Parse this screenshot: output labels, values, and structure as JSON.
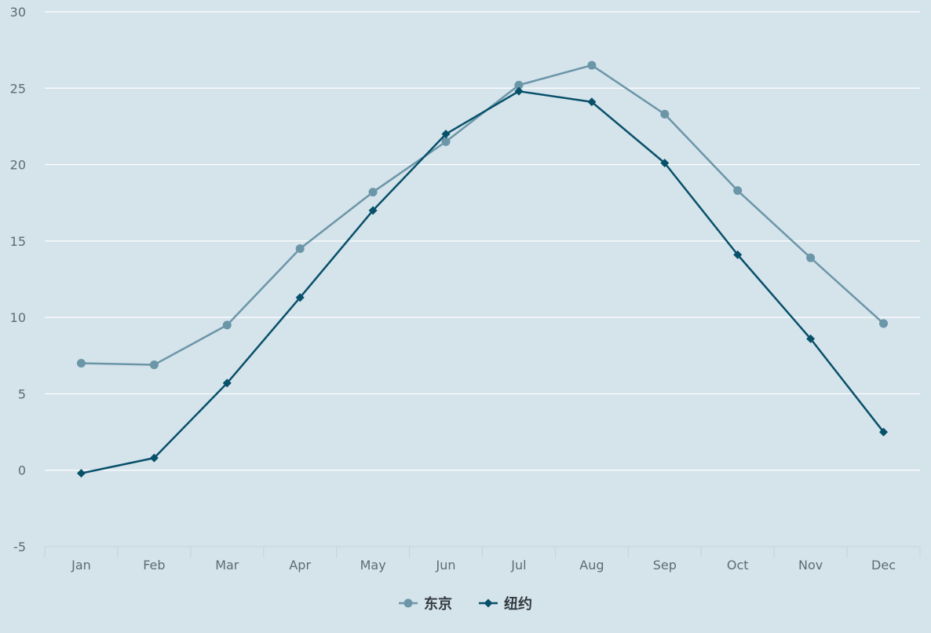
{
  "chart_data": {
    "type": "line",
    "title": "",
    "xlabel": "",
    "ylabel": "",
    "categories": [
      "Jan",
      "Feb",
      "Mar",
      "Apr",
      "May",
      "Jun",
      "Jul",
      "Aug",
      "Sep",
      "Oct",
      "Nov",
      "Dec"
    ],
    "ylim": [
      -5,
      30
    ],
    "yticks": [
      -5,
      0,
      5,
      10,
      15,
      20,
      25,
      30
    ],
    "grid": true,
    "legend": "bottom",
    "series": [
      {
        "name": "东京",
        "marker": "circle",
        "color": "#6b96a8",
        "values": [
          7.0,
          6.9,
          9.5,
          14.5,
          18.2,
          21.5,
          25.2,
          26.5,
          23.3,
          18.3,
          13.9,
          9.6
        ]
      },
      {
        "name": "纽约",
        "marker": "diamond",
        "color": "#07506a",
        "values": [
          -0.2,
          0.8,
          5.7,
          11.3,
          17.0,
          22.0,
          24.8,
          24.1,
          20.1,
          14.1,
          8.6,
          2.5
        ]
      }
    ]
  },
  "colors": {
    "background": "#d5e3eb",
    "gridline": "#ffffff",
    "tick_text": "#5f6b73",
    "legend_text": "#333a40"
  }
}
